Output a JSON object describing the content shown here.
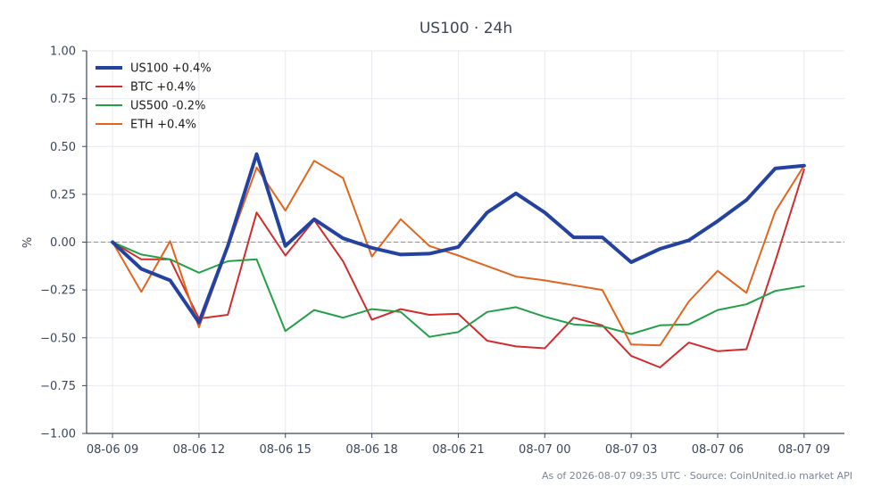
{
  "chart_data": {
    "type": "line",
    "title": "US100 · 24h",
    "xlabel": "",
    "ylabel": "%",
    "ylim": [
      -1.0,
      1.0
    ],
    "yticks": [
      1.0,
      0.75,
      0.5,
      0.25,
      0.0,
      -0.25,
      -0.5,
      -0.75,
      -1.0
    ],
    "ytick_labels": [
      "1.00",
      "0.75",
      "0.50",
      "0.25",
      "0.00",
      "−0.25",
      "−0.50",
      "−0.75",
      "−1.00"
    ],
    "x_hours": [
      0,
      1,
      2,
      3,
      4,
      5,
      6,
      7,
      8,
      9,
      10,
      11,
      12,
      13,
      14,
      15,
      16,
      17,
      18,
      19,
      20,
      21,
      22,
      23,
      24
    ],
    "x_start": "2026-08-06 09:00",
    "xlim": [
      -0.9,
      25.4
    ],
    "xticks": [
      0,
      3,
      6,
      9,
      12,
      15,
      18,
      21,
      24
    ],
    "xtick_labels": [
      "08-06 09",
      "08-06 12",
      "08-06 15",
      "08-06 18",
      "08-06 21",
      "08-07 00",
      "08-07 03",
      "08-07 06",
      "08-07 09"
    ],
    "grid": true,
    "zero_line": true,
    "legend_position": "top-left",
    "series": [
      {
        "name": "US100 +0.4%",
        "color": "#2442a0",
        "width": 4,
        "values": [
          0.0,
          -0.14,
          -0.2,
          -0.42,
          -0.02,
          0.46,
          -0.02,
          0.12,
          0.02,
          -0.03,
          -0.065,
          -0.06,
          -0.025,
          0.155,
          0.255,
          0.155,
          0.025,
          0.025,
          -0.105,
          -0.035,
          0.01,
          0.11,
          0.22,
          0.385,
          0.4
        ]
      },
      {
        "name": "BTC +0.4%",
        "color": "#d02c2c",
        "width": 2,
        "values": [
          0.0,
          -0.09,
          -0.09,
          -0.4,
          -0.38,
          0.155,
          -0.07,
          0.115,
          -0.1,
          -0.405,
          -0.35,
          -0.38,
          -0.375,
          -0.515,
          -0.545,
          -0.555,
          -0.395,
          -0.435,
          -0.595,
          -0.655,
          -0.525,
          -0.57,
          -0.56,
          -0.1,
          0.38
        ]
      },
      {
        "name": "US500 -0.2%",
        "color": "#23a047",
        "width": 2,
        "values": [
          0.0,
          -0.065,
          -0.09,
          -0.16,
          -0.1,
          -0.09,
          -0.465,
          -0.355,
          -0.395,
          -0.35,
          -0.365,
          -0.495,
          -0.47,
          -0.365,
          -0.34,
          -0.39,
          -0.43,
          -0.44,
          -0.48,
          -0.435,
          -0.43,
          -0.355,
          -0.325,
          -0.255,
          -0.23
        ]
      },
      {
        "name": "ETH +0.4%",
        "color": "#e0651f",
        "width": 2,
        "values": [
          0.0,
          -0.26,
          0.005,
          -0.445,
          -0.03,
          0.39,
          0.165,
          0.425,
          0.335,
          -0.075,
          0.12,
          -0.02,
          -0.07,
          -0.125,
          -0.18,
          -0.2,
          -0.225,
          -0.25,
          -0.535,
          -0.54,
          -0.31,
          -0.15,
          -0.265,
          0.16,
          0.4
        ]
      }
    ]
  },
  "footer": "As of 2026-08-07 09:35 UTC · Source: CoinUnited.io market API"
}
